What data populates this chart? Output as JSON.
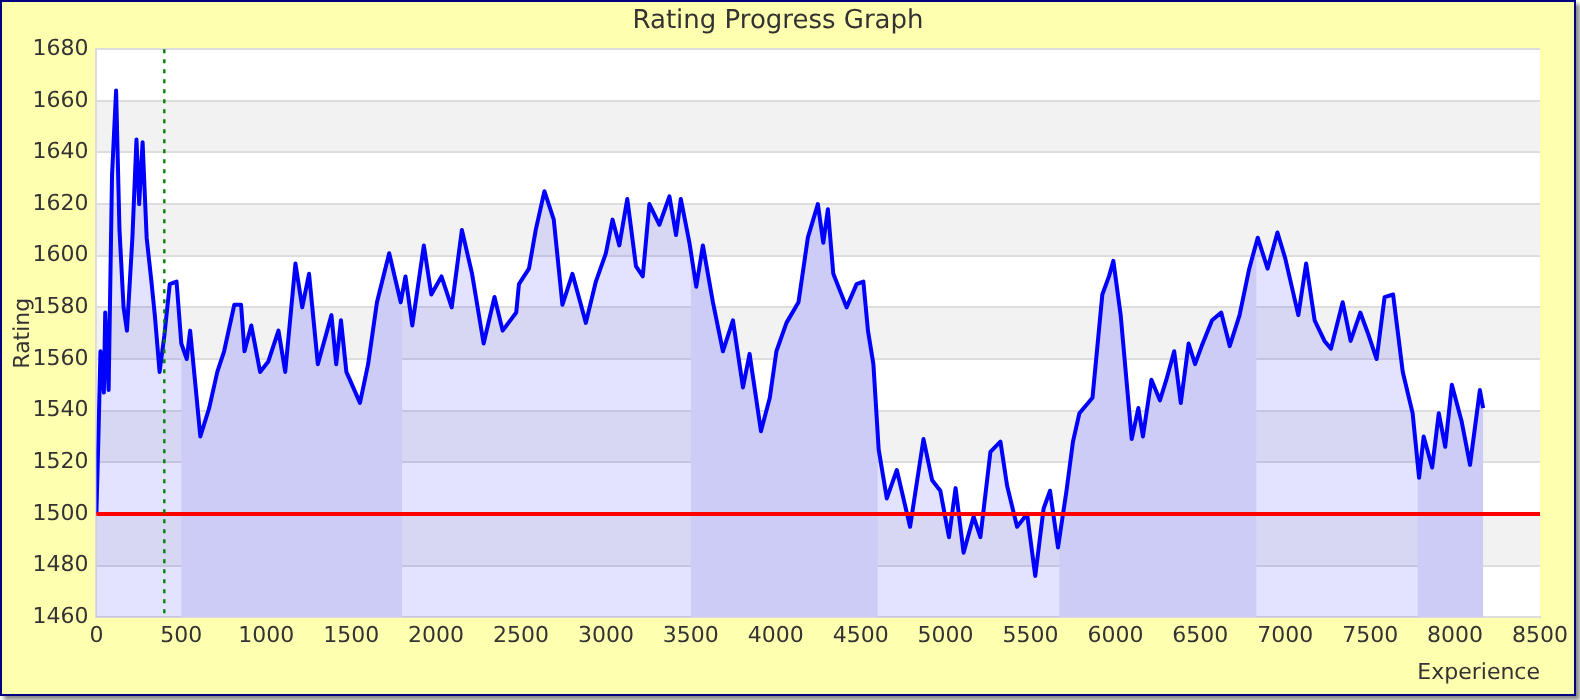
{
  "chart_data": {
    "type": "area",
    "title": "Rating Progress Graph",
    "xlabel": "Experience",
    "ylabel": "Rating",
    "x": [
      0,
      12,
      24,
      44,
      52,
      72,
      92,
      116,
      136,
      160,
      180,
      212,
      236,
      252,
      272,
      296,
      324,
      344,
      372,
      400,
      432,
      472,
      500,
      532,
      552,
      580,
      612,
      664,
      712,
      752,
      812,
      852,
      872,
      912,
      964,
      1012,
      1072,
      1112,
      1172,
      1212,
      1252,
      1304,
      1384,
      1412,
      1440,
      1472,
      1552,
      1600,
      1652,
      1724,
      1792,
      1820,
      1860,
      1928,
      1972,
      2032,
      2092,
      2152,
      2212,
      2280,
      2344,
      2392,
      2472,
      2488,
      2547,
      2587,
      2638,
      2693,
      2744,
      2803,
      2882,
      2941,
      3000,
      3039,
      3079,
      3126,
      3177,
      3217,
      3256,
      3315,
      3374,
      3413,
      3441,
      3492,
      3532,
      3571,
      3630,
      3689,
      3748,
      3807,
      3846,
      3913,
      3965,
      4004,
      4063,
      4134,
      4189,
      4248,
      4280,
      4307,
      4339,
      4417,
      4476,
      4516,
      4543,
      4575,
      4606,
      4654,
      4713,
      4791,
      4870,
      4921,
      4969,
      5020,
      5059,
      5106,
      5165,
      5205,
      5264,
      5323,
      5362,
      5421,
      5480,
      5528,
      5577,
      5615,
      5662,
      5712,
      5750,
      5788,
      5865,
      5923,
      5962,
      5988,
      6031,
      6096,
      6135,
      6162,
      6212,
      6262,
      6300,
      6346,
      6385,
      6431,
      6469,
      6508,
      6569,
      6623,
      6673,
      6731,
      6788,
      6838,
      6896,
      6954,
      7000,
      7077,
      7123,
      7173,
      7231,
      7269,
      7338,
      7385,
      7442,
      7492,
      7538,
      7585,
      7635,
      7692,
      7750,
      7788,
      7815,
      7865,
      7904,
      7942,
      7981,
      8038,
      8088,
      8146,
      8165
    ],
    "series": [
      {
        "color": "#0000ff",
        "values": [
          1500,
          1530,
          1563,
          1547,
          1578,
          1548,
          1631,
          1664,
          1610,
          1580,
          1571,
          1607,
          1645,
          1620,
          1644,
          1607,
          1590,
          1577,
          1555,
          1569,
          1589,
          1590,
          1566,
          1560,
          1571,
          1552,
          1530,
          1541,
          1555,
          1563,
          1581,
          1581,
          1563,
          1573,
          1555,
          1559,
          1571,
          1555,
          1597,
          1580,
          1593,
          1558,
          1577,
          1558,
          1575,
          1555,
          1543,
          1558,
          1582,
          1601,
          1582,
          1592,
          1573,
          1604,
          1585,
          1592,
          1580,
          1610,
          1593,
          1566,
          1584,
          1571,
          1578,
          1589,
          1595,
          1610,
          1625,
          1614,
          1581,
          1593,
          1574,
          1590,
          1601,
          1614,
          1604,
          1622,
          1596,
          1592,
          1620,
          1612,
          1623,
          1608,
          1622,
          1605,
          1588,
          1604,
          1582,
          1563,
          1575,
          1549,
          1562,
          1532,
          1545,
          1563,
          1574,
          1582,
          1607,
          1620,
          1605,
          1618,
          1593,
          1580,
          1589,
          1590,
          1571,
          1558,
          1525,
          1506,
          1517,
          1495,
          1529,
          1513,
          1509,
          1491,
          1510,
          1485,
          1499,
          1491,
          1524,
          1528,
          1511,
          1495,
          1500,
          1476,
          1502,
          1509,
          1487,
          1509,
          1528,
          1539,
          1545,
          1585,
          1592,
          1598,
          1577,
          1529,
          1541,
          1530,
          1552,
          1544,
          1552,
          1563,
          1543,
          1566,
          1558,
          1565,
          1575,
          1578,
          1565,
          1577,
          1595,
          1607,
          1595,
          1609,
          1599,
          1577,
          1597,
          1575,
          1567,
          1564,
          1582,
          1567,
          1578,
          1569,
          1560,
          1584,
          1585,
          1555,
          1539,
          1514,
          1530,
          1518,
          1539,
          1526,
          1550,
          1536,
          1519,
          1548,
          1541
        ]
      }
    ],
    "xlim": [
      0,
      8500
    ],
    "xticks": [
      0,
      500,
      1000,
      1500,
      2000,
      2500,
      3000,
      3500,
      4000,
      4500,
      5000,
      5500,
      6000,
      6500,
      7000,
      7500,
      8000,
      8500
    ],
    "ylim": [
      1460,
      1680
    ],
    "yticks": [
      1460,
      1480,
      1500,
      1520,
      1540,
      1560,
      1580,
      1600,
      1620,
      1640,
      1660,
      1680
    ],
    "grid": "y",
    "bands": [
      {
        "axis": "x",
        "from": 500,
        "to": 1800,
        "color": "#e6e6f7"
      },
      {
        "axis": "x",
        "from": 3500,
        "to": 4600,
        "color": "#e6e6f7"
      },
      {
        "axis": "x",
        "from": 5670,
        "to": 6830,
        "color": "#e6e6f7"
      },
      {
        "axis": "x",
        "from": 7780,
        "to": 8165,
        "color": "#e6e6f7"
      }
    ],
    "ref_lines": [
      {
        "axis": "y",
        "value": 1500,
        "color": "#ff0000",
        "line_style": "solid"
      },
      {
        "axis": "x",
        "value": 400,
        "color": "#008000",
        "line_style": "dotted"
      }
    ]
  }
}
